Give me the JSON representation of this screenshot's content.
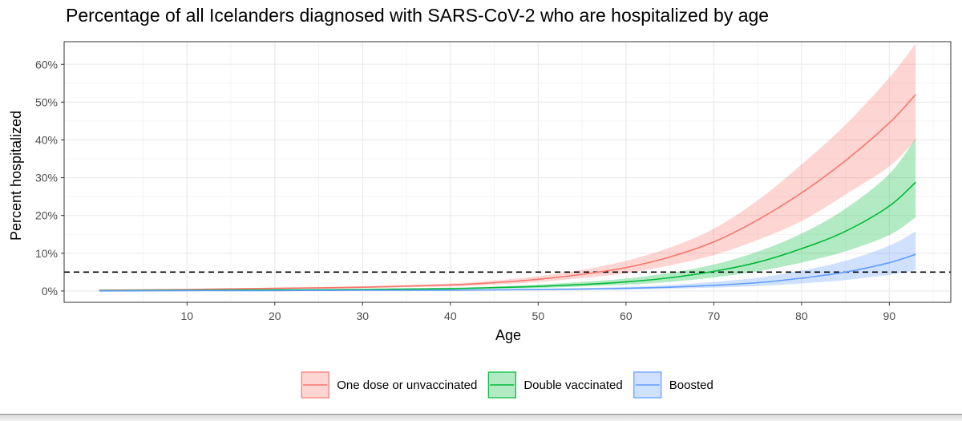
{
  "chart_data": {
    "type": "line",
    "title": "Percentage of all Icelanders diagnosed with SARS-CoV-2 who are hospitalized by age",
    "xlabel": "Age",
    "ylabel": "Percent hospitalized",
    "xlim": [
      -4,
      97
    ],
    "ylim": [
      -3,
      66
    ],
    "x_ticks": [
      10,
      20,
      30,
      40,
      50,
      60,
      70,
      80,
      90
    ],
    "y_ticks": [
      0,
      10,
      20,
      30,
      40,
      50,
      60
    ],
    "y_tick_labels": [
      "0%",
      "10%",
      "20%",
      "30%",
      "40%",
      "50%",
      "60%"
    ],
    "grid": true,
    "legend_position": "bottom",
    "reference_line": {
      "y": 5,
      "style": "dashed"
    },
    "x": [
      0,
      10,
      20,
      30,
      40,
      45,
      50,
      55,
      60,
      65,
      70,
      75,
      80,
      85,
      90,
      93
    ],
    "series": [
      {
        "name": "One dose or unvaccinated",
        "color": "#F8766D",
        "values": [
          0.2,
          0.4,
          0.7,
          1.0,
          1.6,
          2.2,
          3.1,
          4.4,
          6.2,
          9.0,
          13.0,
          18.8,
          26.0,
          34.5,
          44.5,
          52.0
        ],
        "lower": [
          0.1,
          0.3,
          0.5,
          0.8,
          1.2,
          1.7,
          2.4,
          3.4,
          4.7,
          6.8,
          9.5,
          13.5,
          18.5,
          25.5,
          33.0,
          40.0
        ],
        "upper": [
          0.3,
          0.5,
          0.9,
          1.3,
          2.0,
          2.8,
          3.9,
          5.6,
          8.0,
          11.5,
          16.5,
          24.0,
          33.5,
          44.0,
          56.5,
          65.5
        ]
      },
      {
        "name": "Double vaccinated",
        "color": "#00BA38",
        "values": [
          0.1,
          0.2,
          0.3,
          0.4,
          0.6,
          0.9,
          1.2,
          1.7,
          2.4,
          3.5,
          5.2,
          7.6,
          11.2,
          15.8,
          22.5,
          28.8
        ],
        "lower": [
          0.0,
          0.1,
          0.2,
          0.3,
          0.4,
          0.6,
          0.8,
          1.2,
          1.7,
          2.4,
          3.6,
          5.2,
          7.5,
          10.5,
          14.8,
          19.5
        ],
        "upper": [
          0.2,
          0.3,
          0.4,
          0.6,
          0.9,
          1.2,
          1.7,
          2.4,
          3.3,
          4.8,
          7.0,
          10.4,
          15.2,
          21.8,
          31.0,
          40.5
        ]
      },
      {
        "name": "Boosted",
        "color": "#619CFF",
        "values": [
          0.0,
          0.1,
          0.1,
          0.2,
          0.2,
          0.3,
          0.4,
          0.5,
          0.7,
          1.0,
          1.5,
          2.2,
          3.4,
          5.0,
          7.5,
          9.7
        ],
        "lower": [
          0.0,
          0.0,
          0.0,
          0.1,
          0.1,
          0.2,
          0.2,
          0.3,
          0.4,
          0.6,
          0.9,
          1.3,
          2.0,
          2.9,
          4.3,
          5.5
        ],
        "upper": [
          0.1,
          0.1,
          0.2,
          0.3,
          0.4,
          0.5,
          0.6,
          0.8,
          1.1,
          1.6,
          2.4,
          3.5,
          5.4,
          8.0,
          12.0,
          15.8
        ]
      }
    ]
  }
}
